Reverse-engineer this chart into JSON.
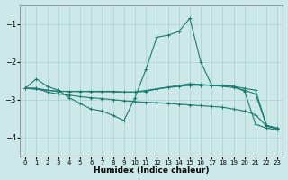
{
  "xlabel": "Humidex (Indice chaleur)",
  "bg_color": "#cde8e8",
  "grid_color": "#afd4d4",
  "line_color": "#1a7a6e",
  "spine_color": "#888888",
  "xlim": [
    -0.5,
    23.5
  ],
  "ylim": [
    -4.5,
    -0.5
  ],
  "yticks": [
    -4,
    -3,
    -2,
    -1
  ],
  "xticks": [
    0,
    1,
    2,
    3,
    4,
    5,
    6,
    7,
    8,
    9,
    10,
    11,
    12,
    13,
    14,
    15,
    16,
    17,
    18,
    19,
    20,
    21,
    22,
    23
  ],
  "lines": [
    {
      "x": [
        0,
        1,
        2,
        3,
        4,
        5,
        6,
        7,
        8,
        9,
        10,
        11,
        12,
        13,
        14,
        15,
        16,
        17,
        18,
        19,
        20,
        21,
        22,
        23
      ],
      "y": [
        -2.7,
        -2.45,
        -2.65,
        -2.75,
        -2.95,
        -3.1,
        -3.25,
        -3.3,
        -3.42,
        -3.55,
        -2.95,
        -2.2,
        -1.35,
        -1.3,
        -1.2,
        -0.85,
        -2.0,
        -2.62,
        -2.62,
        -2.65,
        -2.78,
        -3.65,
        -3.75,
        -3.8
      ]
    },
    {
      "x": [
        0,
        1,
        2,
        3,
        4,
        5,
        6,
        7,
        8,
        9,
        10,
        11,
        12,
        13,
        14,
        15,
        16,
        17,
        18,
        19,
        20,
        21,
        22,
        23
      ],
      "y": [
        -2.7,
        -2.7,
        -2.8,
        -2.85,
        -2.88,
        -2.92,
        -2.95,
        -2.97,
        -3.0,
        -3.03,
        -3.05,
        -3.07,
        -3.08,
        -3.1,
        -3.12,
        -3.14,
        -3.16,
        -3.18,
        -3.2,
        -3.25,
        -3.3,
        -3.4,
        -3.7,
        -3.77
      ]
    },
    {
      "x": [
        0,
        1,
        2,
        3,
        4,
        5,
        6,
        7,
        8,
        9,
        10,
        11,
        12,
        13,
        14,
        15,
        16,
        17,
        18,
        19,
        20,
        21,
        22,
        23
      ],
      "y": [
        -2.7,
        -2.7,
        -2.75,
        -2.78,
        -2.78,
        -2.78,
        -2.78,
        -2.78,
        -2.78,
        -2.8,
        -2.8,
        -2.78,
        -2.72,
        -2.68,
        -2.65,
        -2.62,
        -2.62,
        -2.62,
        -2.62,
        -2.65,
        -2.7,
        -2.75,
        -3.68,
        -3.75
      ]
    },
    {
      "x": [
        0,
        3,
        10,
        15,
        16,
        17,
        19,
        20,
        21,
        22,
        23
      ],
      "y": [
        -2.7,
        -2.78,
        -2.8,
        -2.58,
        -2.6,
        -2.62,
        -2.68,
        -2.75,
        -2.85,
        -3.68,
        -3.77
      ]
    }
  ]
}
